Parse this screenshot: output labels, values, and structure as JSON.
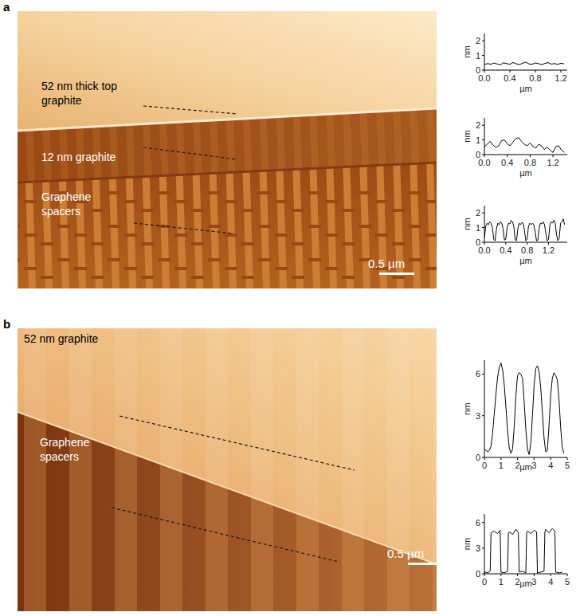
{
  "panels": [
    {
      "label": "a",
      "image_labels": [
        "52 nm thick top graphite",
        "12 nm graphite",
        "Graphene spacers"
      ],
      "scale_bar": "0.5 µm"
    },
    {
      "label": "b",
      "image_labels": [
        "52 nm graphite",
        "Graphene spacers"
      ],
      "scale_bar": "0.5 µm"
    }
  ],
  "chart_data": [
    {
      "type": "line",
      "color": "#000000",
      "line_style": "solid",
      "xlabel": "µm",
      "ylabel": "nm",
      "x": [
        0,
        0.05,
        0.1,
        0.15,
        0.2,
        0.25,
        0.3,
        0.35,
        0.4,
        0.45,
        0.5,
        0.55,
        0.6,
        0.65,
        0.7,
        0.75,
        0.8,
        0.85,
        0.9,
        0.95,
        1.0,
        1.05,
        1.1,
        1.15,
        1.2,
        1.25
      ],
      "values": [
        0.38,
        0.45,
        0.4,
        0.48,
        0.42,
        0.36,
        0.5,
        0.44,
        0.4,
        0.52,
        0.43,
        0.38,
        0.47,
        0.55,
        0.42,
        0.4,
        0.49,
        0.44,
        0.37,
        0.46,
        0.51,
        0.41,
        0.45,
        0.39,
        0.47,
        0.43
      ],
      "xlim": [
        0,
        1.3
      ],
      "ylim": [
        0,
        2.5
      ],
      "xticks": [
        {
          "value": 0,
          "label": "0.0"
        },
        0.4,
        0.8,
        1.2
      ],
      "yticks": [
        0,
        1,
        2
      ]
    },
    {
      "type": "line",
      "color": "#000000",
      "line_style": "solid",
      "xlabel": "µm",
      "ylabel": "nm",
      "x": [
        0,
        0.05,
        0.1,
        0.15,
        0.2,
        0.25,
        0.3,
        0.35,
        0.4,
        0.45,
        0.5,
        0.55,
        0.6,
        0.65,
        0.7,
        0.75,
        0.8,
        0.85,
        0.9,
        0.95,
        1.0,
        1.05,
        1.1,
        1.15,
        1.2,
        1.25,
        1.3,
        1.35,
        1.4
      ],
      "values": [
        0.55,
        0.7,
        0.9,
        0.65,
        0.5,
        0.6,
        0.95,
        1.0,
        0.75,
        0.6,
        0.85,
        1.1,
        1.15,
        0.9,
        0.7,
        0.6,
        0.8,
        0.55,
        0.45,
        0.7,
        0.6,
        0.35,
        0.5,
        0.3,
        0.15,
        0.55,
        0.6,
        0.3,
        0.15
      ],
      "xlim": [
        0,
        1.45
      ],
      "ylim": [
        0,
        2.5
      ],
      "xticks": [
        {
          "value": 0,
          "label": "0.0"
        },
        0.4,
        0.8,
        1.2
      ],
      "yticks": [
        0,
        1,
        2
      ]
    },
    {
      "type": "line",
      "color": "#000000",
      "line_style": "solid",
      "xlabel": "µm",
      "ylabel": "nm",
      "x": [
        0,
        0.025,
        0.05,
        0.075,
        0.1,
        0.125,
        0.15,
        0.175,
        0.2,
        0.225,
        0.25,
        0.275,
        0.3,
        0.325,
        0.35,
        0.375,
        0.4,
        0.425,
        0.45,
        0.475,
        0.5,
        0.525,
        0.55,
        0.575,
        0.6,
        0.625,
        0.65,
        0.675,
        0.7,
        0.725,
        0.75,
        0.775,
        0.8,
        0.825,
        0.85,
        0.875,
        0.9,
        0.925,
        0.95,
        0.975,
        1.0,
        1.025,
        1.05,
        1.075,
        1.1,
        1.125,
        1.15,
        1.175,
        1.2,
        1.225,
        1.25,
        1.275,
        1.3,
        1.325,
        1.35,
        1.375,
        1.4,
        1.425,
        1.45,
        1.475,
        1.5
      ],
      "values": [
        0.3,
        1.1,
        1.3,
        1.2,
        1.4,
        1.3,
        1.0,
        0.2,
        0.1,
        0.9,
        1.3,
        1.2,
        1.4,
        1.3,
        0.9,
        0.15,
        0.2,
        1.0,
        1.3,
        1.25,
        1.5,
        1.4,
        1.1,
        0.2,
        0.1,
        0.9,
        1.3,
        1.2,
        1.35,
        1.3,
        0.8,
        0.1,
        0.2,
        1.1,
        1.3,
        1.2,
        1.3,
        1.2,
        0.7,
        0.1,
        0.15,
        1.0,
        1.3,
        1.25,
        1.4,
        1.2,
        0.6,
        0.1,
        0.2,
        1.2,
        1.4,
        1.3,
        1.5,
        1.3,
        0.5,
        0.1,
        0.3,
        1.3,
        1.4,
        1.6,
        1.2
      ],
      "xlim": [
        0,
        1.55
      ],
      "ylim": [
        0,
        2.5
      ],
      "xticks": [
        {
          "value": 0,
          "label": "0.0"
        },
        0.4,
        0.8,
        1.2
      ],
      "yticks": [
        0,
        1,
        2
      ]
    },
    {
      "type": "line",
      "color": "#000000",
      "line_style": "solid",
      "xlabel": "µm",
      "ylabel": "nm",
      "x": [
        0,
        0.1,
        0.2,
        0.3,
        0.4,
        0.5,
        0.6,
        0.7,
        0.8,
        0.9,
        1.0,
        1.1,
        1.2,
        1.3,
        1.4,
        1.5,
        1.6,
        1.7,
        1.8,
        1.9,
        2.0,
        2.1,
        2.2,
        2.3,
        2.4,
        2.5,
        2.6,
        2.7,
        2.8,
        2.9,
        3.0,
        3.1,
        3.2,
        3.3,
        3.4,
        3.5,
        3.6,
        3.7,
        3.8,
        3.9,
        4.0,
        4.1,
        4.2,
        4.3,
        4.4,
        4.5,
        4.6,
        4.7,
        4.8
      ],
      "values": [
        0.6,
        0.5,
        0.4,
        0.5,
        0.8,
        1.8,
        3.2,
        4.6,
        5.8,
        6.5,
        6.8,
        6.3,
        5.2,
        3.6,
        1.9,
        0.7,
        0.3,
        0.6,
        2.2,
        4.4,
        5.9,
        6.1,
        6.0,
        5.7,
        4.0,
        2.0,
        0.6,
        0.2,
        1.0,
        3.0,
        5.2,
        6.4,
        6.6,
        6.2,
        5.0,
        3.2,
        1.4,
        0.4,
        0.5,
        2.3,
        4.5,
        5.7,
        6.1,
        5.9,
        5.6,
        4.2,
        2.2,
        0.7,
        0.3
      ],
      "xlim": [
        0,
        5
      ],
      "ylim": [
        0,
        7
      ],
      "xticks": [
        0,
        1,
        2,
        3,
        4,
        5
      ],
      "yticks": [
        0,
        3,
        6
      ]
    },
    {
      "type": "line",
      "color": "#000000",
      "line_style": "solid",
      "xlabel": "µm",
      "ylabel": "nm",
      "x": [
        0,
        0.2,
        0.35,
        0.4,
        0.6,
        0.8,
        0.95,
        1.0,
        1.2,
        1.4,
        1.45,
        1.5,
        1.7,
        1.9,
        2.05,
        2.1,
        2.3,
        2.5,
        2.55,
        2.6,
        2.8,
        3.0,
        3.15,
        3.2,
        3.4,
        3.6,
        3.65,
        3.7,
        3.9,
        4.1,
        4.25,
        4.3,
        4.5,
        4.7
      ],
      "values": [
        0.2,
        0.1,
        0.3,
        4.8,
        5.0,
        4.7,
        5.1,
        0.2,
        0.1,
        0.3,
        4.7,
        4.9,
        4.6,
        5.2,
        4.8,
        0.2,
        0.3,
        0.1,
        4.8,
        5.0,
        4.7,
        5.1,
        4.9,
        0.1,
        0.2,
        0.3,
        4.9,
        5.2,
        4.8,
        5.3,
        5.0,
        0.2,
        0.1,
        0.2
      ],
      "xlim": [
        0,
        5
      ],
      "ylim": [
        0,
        7
      ],
      "xticks": [
        0,
        1,
        2,
        3,
        4,
        5
      ],
      "yticks": [
        0,
        3,
        6
      ]
    }
  ]
}
